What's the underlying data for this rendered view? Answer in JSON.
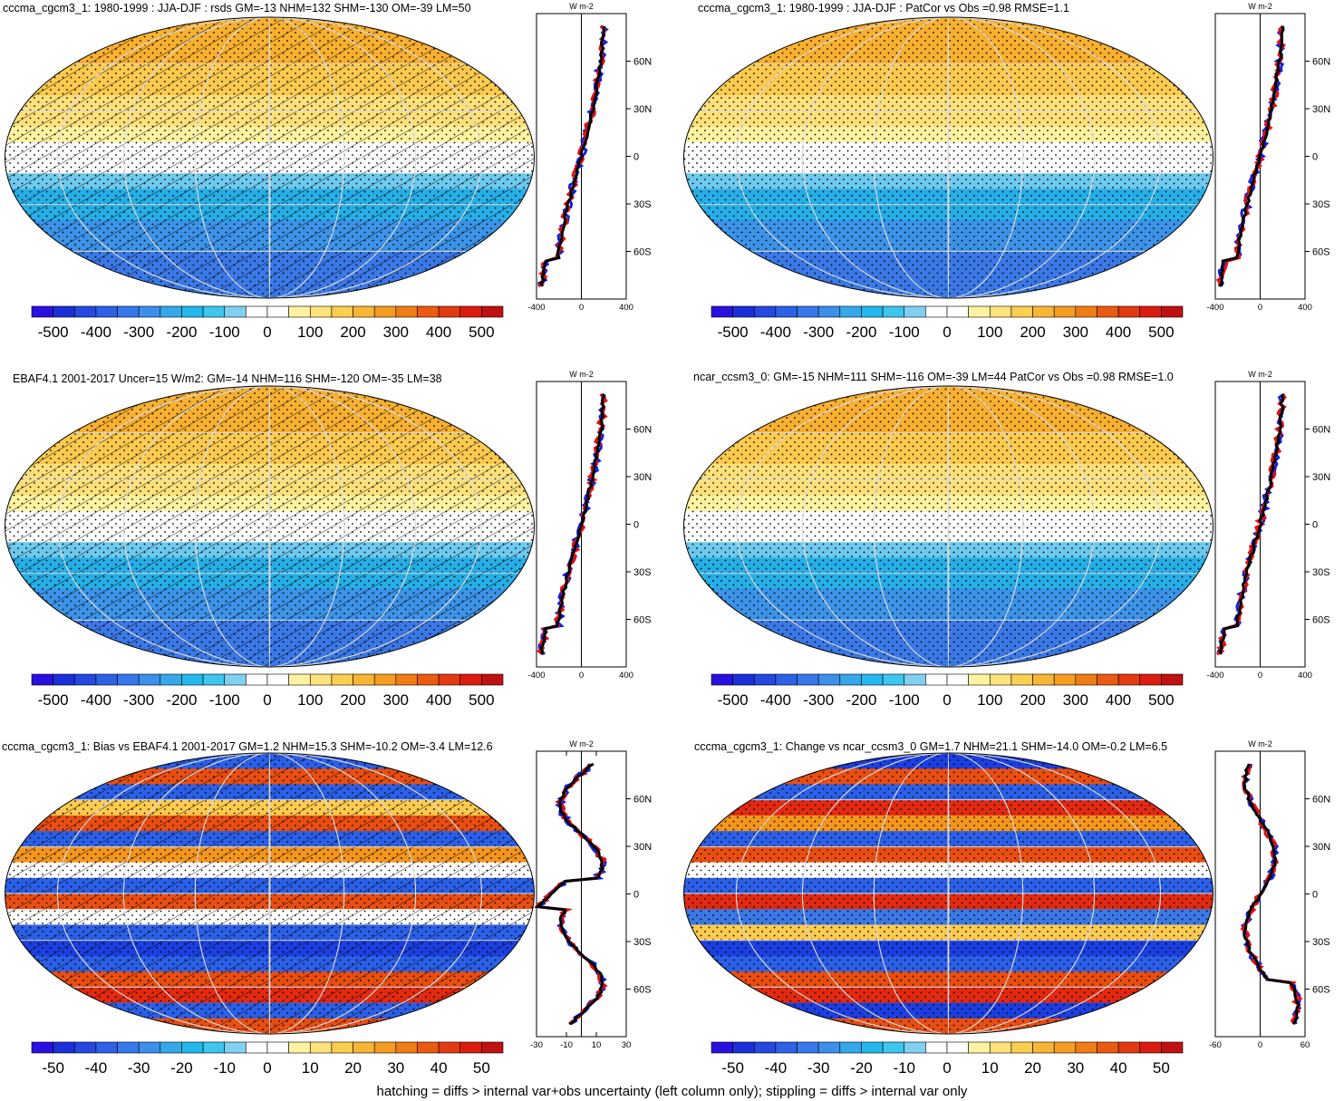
{
  "footer": "hatching = diffs > internal var+obs uncertainty (left column only); stippling = diffs > internal var only",
  "colors": {
    "palette_levels": [
      "#2a1fd6",
      "#1b3fe0",
      "#2a5fe8",
      "#3a78e6",
      "#3c93e8",
      "#26aee6",
      "#1cc0ec",
      "#6ec9ee",
      "#ffffff",
      "#ffffff",
      "#fff3a0",
      "#fde07a",
      "#fbca4e",
      "#f8b030",
      "#f4951c",
      "#ee7212",
      "#e94e10",
      "#e22a10",
      "#c31010"
    ],
    "profile_blue": "#1020e0",
    "profile_red": "#e41010",
    "profile_black": "#000000"
  },
  "panels": [
    {
      "id": "p1",
      "title": "cccma_cgcm3_1: 1980-1999 : JJA-DJF : rsds GM=-13 NHM=132 SHM=-130 OM=-39 LM=50",
      "hatched": true,
      "field": "clim",
      "colorbar_labels": [
        "-500",
        "-400",
        "-300",
        "-200",
        "-100",
        "0",
        "100",
        "200",
        "300",
        "400",
        "500"
      ],
      "profile": {
        "units": "W m-2",
        "xticks": [
          "-400",
          "0",
          "400"
        ],
        "xmin": -400,
        "xmax": 400,
        "yticks": [
          "60N",
          "30N",
          "0",
          "30S",
          "60S"
        ],
        "shape": "clim",
        "seed": 1
      }
    },
    {
      "id": "p2",
      "title": "cccma_cgcm3_1: 1980-1999 : JJA-DJF : PatCor vs Obs =0.98 RMSE=1.1",
      "hatched": false,
      "field": "clim",
      "colorbar_labels": [
        "-500",
        "-400",
        "-300",
        "-200",
        "-100",
        "0",
        "100",
        "200",
        "300",
        "400",
        "500"
      ],
      "profile": {
        "units": "W m-2",
        "xticks": [
          "-400",
          "0",
          "400"
        ],
        "xmin": -400,
        "xmax": 400,
        "yticks": [
          "60N",
          "30N",
          "0",
          "30S",
          "60S"
        ],
        "shape": "clim",
        "seed": 2
      }
    },
    {
      "id": "p3",
      "title": "EBAF4.1 2001-2017 Uncer=15 W/m2: GM=-14 NHM=116 SHM=-120 OM=-35 LM=38",
      "hatched": true,
      "field": "clim",
      "colorbar_labels": [
        "-500",
        "-400",
        "-300",
        "-200",
        "-100",
        "0",
        "100",
        "200",
        "300",
        "400",
        "500"
      ],
      "profile": {
        "units": "W m-2",
        "xticks": [
          "-400",
          "0",
          "400"
        ],
        "xmin": -400,
        "xmax": 400,
        "yticks": [
          "60N",
          "30N",
          "0",
          "30S",
          "60S"
        ],
        "shape": "clim",
        "seed": 3
      }
    },
    {
      "id": "p4",
      "title": "ncar_ccsm3_0: GM=-15 NHM=111 SHM=-116 OM=-39 LM=44 PatCor vs Obs =0.98 RMSE=1.0",
      "hatched": false,
      "field": "clim",
      "colorbar_labels": [
        "-500",
        "-400",
        "-300",
        "-200",
        "-100",
        "0",
        "100",
        "200",
        "300",
        "400",
        "500"
      ],
      "profile": {
        "units": "W m-2",
        "xticks": [
          "-400",
          "0",
          "400"
        ],
        "xmin": -400,
        "xmax": 400,
        "yticks": [
          "60N",
          "30N",
          "0",
          "30S",
          "60S"
        ],
        "shape": "clim",
        "seed": 4
      }
    },
    {
      "id": "p5",
      "title": "cccma_cgcm3_1: Bias vs EBAF4.1 2001-2017 GM=1.2 NHM=15.3 SHM=-10.2 OM=-3.4 LM=12.6",
      "hatched": true,
      "field": "bias",
      "colorbar_labels": [
        "-50",
        "-40",
        "-30",
        "-20",
        "-10",
        "0",
        "10",
        "20",
        "30",
        "40",
        "50"
      ],
      "profile": {
        "units": "W m-2",
        "xticks": [
          "-30",
          "-10",
          "10",
          "30"
        ],
        "xmin": -30,
        "xmax": 30,
        "yticks": [
          "60N",
          "30N",
          "0",
          "30S",
          "60S"
        ],
        "shape": "bias",
        "seed": 5
      }
    },
    {
      "id": "p6",
      "title": "cccma_cgcm3_1: Change vs ncar_ccsm3_0 GM=1.7 NHM=21.1 SHM=-14.0 OM=-0.2 LM=6.5",
      "hatched": false,
      "field": "change",
      "colorbar_labels": [
        "-50",
        "-40",
        "-30",
        "-20",
        "-10",
        "0",
        "10",
        "20",
        "30",
        "40",
        "50"
      ],
      "profile": {
        "units": "W m-2",
        "xticks": [
          "-60",
          "0",
          "60"
        ],
        "xmin": -60,
        "xmax": 60,
        "yticks": [
          "60N",
          "30N",
          "0",
          "30S",
          "60S"
        ],
        "shape": "change",
        "seed": 6
      }
    }
  ]
}
